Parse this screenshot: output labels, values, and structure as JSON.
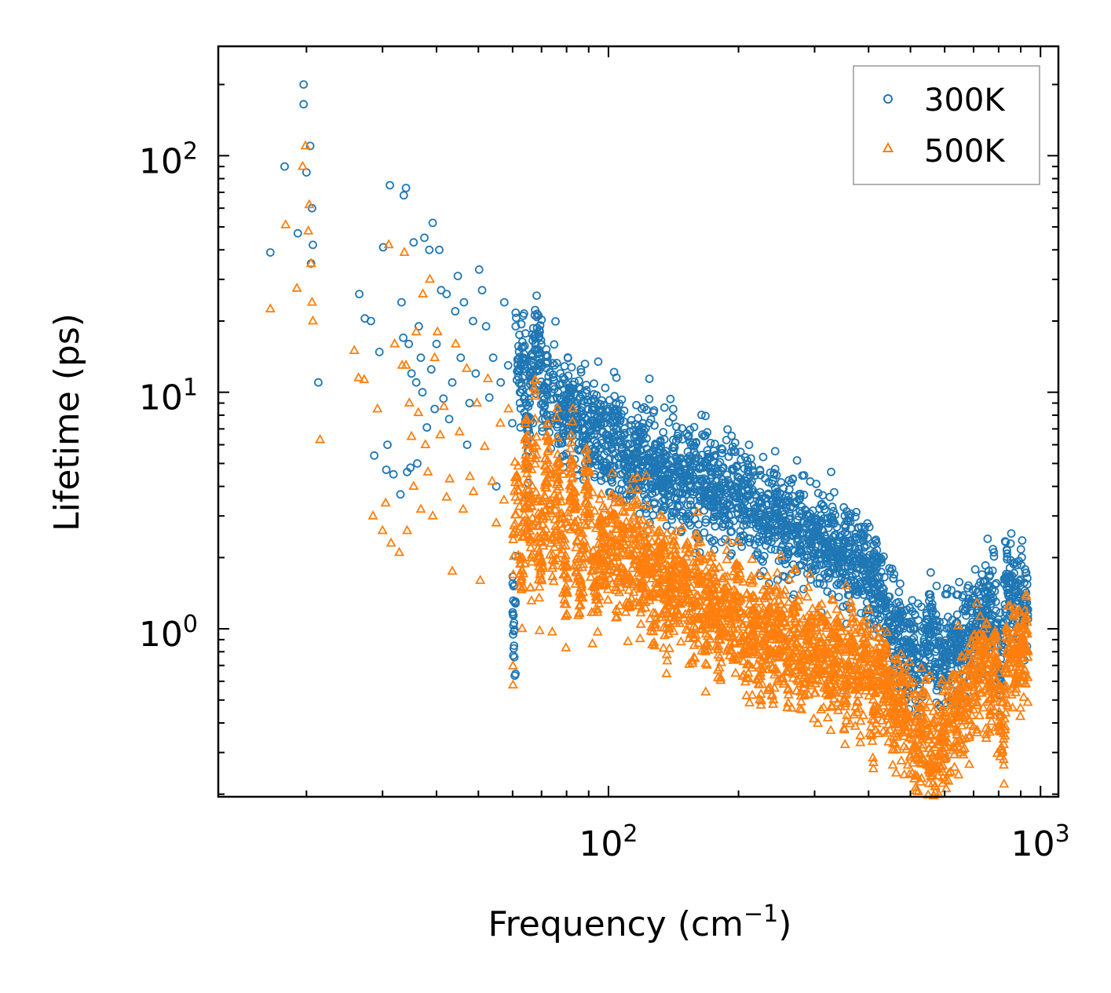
{
  "chart_data": {
    "type": "scatter",
    "title": "",
    "xlabel": "Frequency (cm",
    "xlabel_sup": "−1",
    "xlabel_close": ")",
    "ylabel": "Lifetime (ps)",
    "xscale": "log",
    "yscale": "log",
    "xlim": [
      12.5,
      1100
    ],
    "ylim": [
      0.195,
      290
    ],
    "x_ticks": [
      {
        "value": 100,
        "base": "10",
        "exp": "2"
      },
      {
        "value": 1000,
        "base": "10",
        "exp": "3"
      }
    ],
    "y_ticks": [
      {
        "value": 1,
        "base": "10",
        "exp": "0"
      },
      {
        "value": 10,
        "base": "10",
        "exp": "1"
      },
      {
        "value": 100,
        "base": "10",
        "exp": "2"
      }
    ],
    "legend_position": "top-right",
    "series": [
      {
        "name": "300K",
        "marker": "circle",
        "color": "#1f77b4",
        "points": [
          [
            16.5,
            39
          ],
          [
            17.8,
            90
          ],
          [
            19.1,
            47
          ],
          [
            19.7,
            200
          ],
          [
            19.7,
            165
          ],
          [
            20.0,
            85
          ],
          [
            20.4,
            110
          ],
          [
            20.6,
            60
          ],
          [
            20.7,
            42
          ],
          [
            20.5,
            35
          ],
          [
            21.3,
            11
          ],
          [
            26.5,
            26
          ],
          [
            27.3,
            20.5
          ],
          [
            28.2,
            20
          ],
          [
            28.7,
            5.4
          ],
          [
            29.5,
            14.8
          ],
          [
            30.1,
            41
          ],
          [
            30.6,
            4.7
          ],
          [
            30.8,
            6
          ],
          [
            31.2,
            75
          ],
          [
            31.8,
            4.5
          ],
          [
            33.0,
            3.7
          ],
          [
            33.2,
            24
          ],
          [
            33.5,
            17
          ],
          [
            33.6,
            68
          ],
          [
            34.0,
            73
          ],
          [
            34.2,
            4.6
          ],
          [
            34.5,
            16
          ],
          [
            34.8,
            4.8
          ],
          [
            35.0,
            12
          ],
          [
            35.4,
            43
          ],
          [
            35.9,
            11
          ],
          [
            36.1,
            5
          ],
          [
            36.4,
            19
          ],
          [
            36.8,
            14
          ],
          [
            37.1,
            10
          ],
          [
            37.5,
            45
          ],
          [
            38.0,
            7.1
          ],
          [
            38.5,
            40
          ],
          [
            38.9,
            12.5
          ],
          [
            39.2,
            52
          ],
          [
            39.6,
            8.5
          ],
          [
            40.0,
            16
          ],
          [
            40.6,
            40
          ],
          [
            41.0,
            27
          ],
          [
            41.5,
            9.4
          ],
          [
            42.2,
            26
          ],
          [
            42.8,
            7.7
          ],
          [
            43.5,
            11
          ],
          [
            44.2,
            22
          ],
          [
            44.8,
            31
          ],
          [
            45.5,
            14
          ],
          [
            46.3,
            24
          ],
          [
            47.1,
            6
          ],
          [
            47.7,
            9
          ],
          [
            48.6,
            20
          ],
          [
            49.3,
            12
          ],
          [
            50.2,
            33
          ],
          [
            51.0,
            27
          ],
          [
            52.1,
            19
          ],
          [
            53.0,
            9.5
          ],
          [
            54.1,
            14
          ],
          [
            55.0,
            4
          ],
          [
            56.3,
            11
          ],
          [
            57.4,
            24
          ],
          [
            58.6,
            13
          ],
          [
            59.9,
            7.4
          ],
          [
            61.0,
            19
          ],
          [
            62.4,
            10
          ],
          [
            63.5,
            14
          ],
          [
            64.9,
            6.4
          ],
          [
            66.3,
            12
          ],
          [
            67.4,
            15
          ],
          [
            68.9,
            17
          ],
          [
            70.5,
            9
          ],
          [
            71.9,
            11
          ],
          [
            73.4,
            8
          ],
          [
            75.0,
            13
          ],
          [
            76.5,
            10
          ],
          [
            78.2,
            7.5
          ],
          [
            80.3,
            8.6
          ],
          [
            82.1,
            9.3
          ],
          [
            84.4,
            7
          ],
          [
            86.6,
            8
          ],
          [
            88.9,
            6.6
          ],
          [
            91.0,
            7.4
          ],
          [
            93.8,
            6.9
          ],
          [
            96.5,
            6.1
          ],
          [
            99.2,
            6.3
          ],
          [
            102,
            5.8
          ],
          [
            105,
            6.6
          ],
          [
            108,
            5.5
          ],
          [
            112,
            5.2
          ],
          [
            116,
            5.6
          ],
          [
            120,
            4.9
          ],
          [
            124,
            5.1
          ],
          [
            128,
            4.7
          ],
          [
            133,
            4.9
          ],
          [
            138,
            4.3
          ],
          [
            143,
            4.5
          ],
          [
            148,
            4.1
          ],
          [
            153,
            4.3
          ],
          [
            158,
            3.9
          ],
          [
            164,
            4.2
          ],
          [
            170,
            4.8
          ],
          [
            176,
            3.6
          ],
          [
            182,
            3.9
          ],
          [
            189,
            3.4
          ],
          [
            196,
            4
          ],
          [
            203,
            3.3
          ],
          [
            210,
            3.7
          ],
          [
            218,
            3.1
          ],
          [
            226,
            3.4
          ],
          [
            235,
            2.9
          ],
          [
            244,
            3.2
          ],
          [
            253,
            2.7
          ],
          [
            262,
            2.9
          ],
          [
            272,
            2.5
          ],
          [
            282,
            2.8
          ],
          [
            293,
            2.3
          ],
          [
            305,
            2.6
          ],
          [
            318,
            2.2
          ],
          [
            331,
            2.3
          ],
          [
            345,
            2.0
          ],
          [
            360,
            2.1
          ],
          [
            375,
            1.8
          ],
          [
            392,
            1.9
          ],
          [
            410,
            1.5
          ],
          [
            428,
            1.35
          ],
          [
            447,
            1.05
          ],
          [
            467,
            1.0
          ],
          [
            488,
            0.9
          ],
          [
            510,
            0.8
          ],
          [
            534,
            0.7
          ],
          [
            555,
            0.95
          ],
          [
            572,
            0.8
          ],
          [
            598,
            0.78
          ],
          [
            626,
            0.82
          ],
          [
            655,
            0.88
          ],
          [
            686,
            0.95
          ],
          [
            718,
            1.1
          ],
          [
            752,
            1.2
          ],
          [
            788,
            1.3
          ],
          [
            805,
            0.55
          ],
          [
            825,
            1.55
          ],
          [
            850,
            1.4
          ],
          [
            875,
            1.3
          ],
          [
            900,
            1.35
          ],
          [
            920,
            1.45
          ],
          [
            930,
            1.2
          ],
          [
            935,
            1.1
          ]
        ]
      },
      {
        "name": "500K",
        "marker": "triangle",
        "color": "#ff7f0e",
        "points": [
          [
            16.5,
            22.5
          ],
          [
            17.9,
            51
          ],
          [
            19.0,
            27.5
          ],
          [
            19.6,
            90
          ],
          [
            19.9,
            110
          ],
          [
            20.2,
            48
          ],
          [
            20.3,
            62
          ],
          [
            20.5,
            35
          ],
          [
            20.6,
            24
          ],
          [
            20.7,
            20
          ],
          [
            21.5,
            6.3
          ],
          [
            25.8,
            15
          ],
          [
            26.4,
            11.5
          ],
          [
            27.2,
            11.3
          ],
          [
            28.5,
            3
          ],
          [
            29.2,
            8.5
          ],
          [
            30.0,
            2.6
          ],
          [
            30.5,
            3.4
          ],
          [
            31.0,
            42
          ],
          [
            31.4,
            2.3
          ],
          [
            32.0,
            16
          ],
          [
            32.8,
            2.1
          ],
          [
            33.3,
            13
          ],
          [
            33.7,
            39
          ],
          [
            34.0,
            13
          ],
          [
            34.2,
            2.6
          ],
          [
            34.6,
            9
          ],
          [
            35.0,
            6.5
          ],
          [
            35.4,
            4
          ],
          [
            35.9,
            18
          ],
          [
            36.3,
            8.2
          ],
          [
            36.8,
            3.2
          ],
          [
            37.2,
            26
          ],
          [
            37.7,
            6
          ],
          [
            38.2,
            4.6
          ],
          [
            38.6,
            30
          ],
          [
            39.2,
            3
          ],
          [
            39.6,
            14
          ],
          [
            40.2,
            18
          ],
          [
            40.8,
            6.6
          ],
          [
            41.6,
            8.7
          ],
          [
            42.2,
            3.6
          ],
          [
            42.9,
            4.3
          ],
          [
            43.5,
            1.75
          ],
          [
            44.3,
            16
          ],
          [
            45.2,
            6.8
          ],
          [
            46.1,
            3.2
          ],
          [
            47.0,
            12.6
          ],
          [
            47.8,
            4.4
          ],
          [
            48.7,
            3.8
          ],
          [
            49.6,
            9
          ],
          [
            50.5,
            1.6
          ],
          [
            51.7,
            5.9
          ],
          [
            52.6,
            11.4
          ],
          [
            53.8,
            4.2
          ],
          [
            55.0,
            2.8
          ],
          [
            56.2,
            7.4
          ],
          [
            57.3,
            3.5
          ],
          [
            58.7,
            8.5
          ],
          [
            60.2,
            2.5
          ],
          [
            61.4,
            4.4
          ],
          [
            63.0,
            1.65
          ],
          [
            64.5,
            5.1
          ],
          [
            66.1,
            2.2
          ],
          [
            67.6,
            7.7
          ],
          [
            69.2,
            1.5
          ],
          [
            70.7,
            3
          ],
          [
            72.6,
            6.2
          ],
          [
            74.2,
            1.8
          ],
          [
            76.0,
            4.5
          ],
          [
            78.0,
            2.5
          ],
          [
            80.0,
            1.45
          ],
          [
            82.3,
            5.2
          ],
          [
            84.1,
            2.2
          ],
          [
            86.6,
            1.35
          ],
          [
            89.0,
            4.6
          ],
          [
            91.2,
            2
          ],
          [
            94.1,
            1.6
          ],
          [
            96.6,
            2.6
          ],
          [
            99.1,
            1.7
          ],
          [
            102,
            2.9
          ],
          [
            105,
            1.8
          ],
          [
            108,
            2.4
          ],
          [
            111,
            1.6
          ],
          [
            115,
            2.5
          ],
          [
            119,
            1.5
          ],
          [
            123,
            2.2
          ],
          [
            127,
            1.4
          ],
          [
            131,
            2.0
          ],
          [
            136,
            1.2
          ],
          [
            141,
            1.9
          ],
          [
            146,
            1.3
          ],
          [
            151,
            1.7
          ],
          [
            156,
            1.1
          ],
          [
            162,
            1.6
          ],
          [
            168,
            1.05
          ],
          [
            174,
            1.5
          ],
          [
            180,
            0.9
          ],
          [
            186,
            1.4
          ],
          [
            193,
            1.0
          ],
          [
            200,
            1.3
          ],
          [
            208,
            0.85
          ],
          [
            216,
            1.2
          ],
          [
            224,
            0.75
          ],
          [
            232,
            1.15
          ],
          [
            241,
            0.8
          ],
          [
            250,
            1.05
          ],
          [
            260,
            0.72
          ],
          [
            270,
            1.0
          ],
          [
            280,
            0.7
          ],
          [
            291,
            0.95
          ],
          [
            302,
            0.68
          ],
          [
            314,
            0.92
          ],
          [
            326,
            0.62
          ],
          [
            339,
            0.87
          ],
          [
            352,
            0.6
          ],
          [
            366,
            0.85
          ],
          [
            380,
            0.58
          ],
          [
            395,
            0.8
          ],
          [
            410,
            0.5
          ],
          [
            426,
            0.7
          ],
          [
            443,
            0.55
          ],
          [
            460,
            0.45
          ],
          [
            478,
            0.5
          ],
          [
            497,
            0.42
          ],
          [
            515,
            0.32
          ],
          [
            535,
            0.4
          ],
          [
            557,
            0.3
          ],
          [
            580,
            0.28
          ],
          [
            603,
            0.36
          ],
          [
            627,
            0.42
          ],
          [
            652,
            0.45
          ],
          [
            678,
            0.5
          ],
          [
            705,
            0.6
          ],
          [
            733,
            0.8
          ],
          [
            762,
            0.5
          ],
          [
            792,
            0.75
          ],
          [
            815,
            0.3
          ],
          [
            822,
            0.28
          ],
          [
            832,
            0.7
          ],
          [
            858,
            0.9
          ],
          [
            883,
            0.8
          ],
          [
            905,
            0.75
          ],
          [
            925,
            0.95
          ],
          [
            935,
            0.8
          ]
        ]
      }
    ]
  }
}
